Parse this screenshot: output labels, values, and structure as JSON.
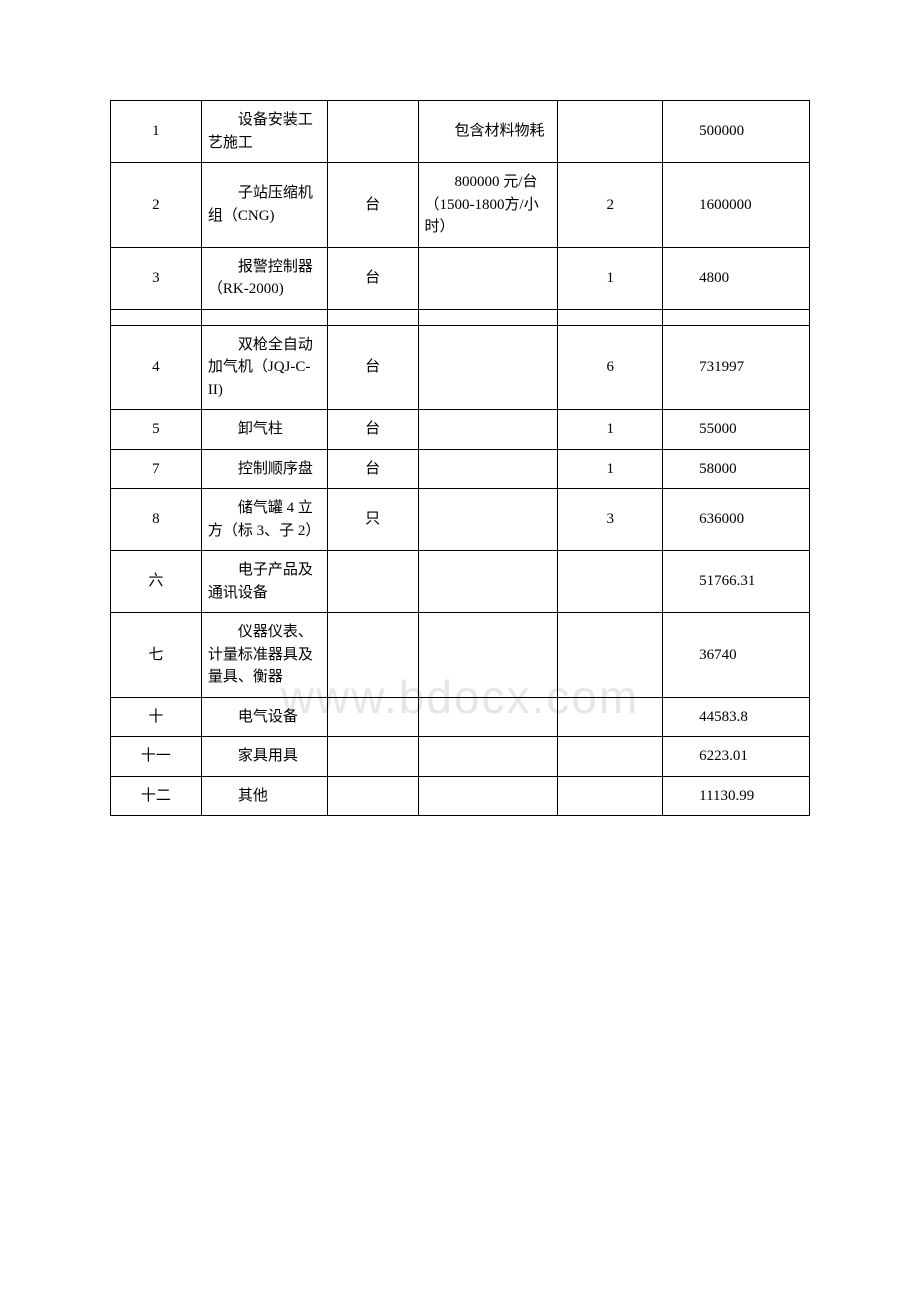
{
  "watermark": "www.bdocx.com",
  "table": {
    "columns_count": 6,
    "rows": [
      {
        "c0": "1",
        "c1": "设备安装工艺施工",
        "c2": "",
        "c3": "包含材料物耗",
        "c4": "",
        "c5": "500000"
      },
      {
        "c0": "2",
        "c1": "子站压缩机组（CNG)",
        "c2": "台",
        "c3": "800000 元/台（1500-1800方/小时）",
        "c4": "2",
        "c5": "1600000"
      },
      {
        "c0": "3",
        "c1": "报警控制器（RK-2000)",
        "c2": "台",
        "c3": "",
        "c4": "1",
        "c5": "4800"
      },
      {
        "separator": true
      },
      {
        "c0": "4",
        "c1": "双枪全自动加气机（JQJ-C-II)",
        "c2": "台",
        "c3": "",
        "c4": "6",
        "c5": "731997"
      },
      {
        "c0": "5",
        "c1": "卸气柱",
        "c2": "台",
        "c3": "",
        "c4": "1",
        "c5": "55000"
      },
      {
        "c0": "7",
        "c1": "控制顺序盘",
        "c2": "台",
        "c3": "",
        "c4": "1",
        "c5": "58000"
      },
      {
        "c0": "8",
        "c1": "储气罐 4 立方（标 3、子 2）",
        "c2": "只",
        "c3": "",
        "c4": "3",
        "c5": "636000"
      },
      {
        "c0": "六",
        "c1": "电子产品及通讯设备",
        "c2": "",
        "c3": "",
        "c4": "",
        "c5": "51766.31"
      },
      {
        "c0": "七",
        "c1": "仪器仪表、计量标准器具及量具、衡器",
        "c2": "",
        "c3": "",
        "c4": "",
        "c5": "36740"
      },
      {
        "c0": "十",
        "c1": "电气设备",
        "c2": "",
        "c3": "",
        "c4": "",
        "c5": "44583.8"
      },
      {
        "c0": "十一",
        "c1": "家具用具",
        "c2": "",
        "c3": "",
        "c4": "",
        "c5": "6223.01"
      },
      {
        "c0": "十二",
        "c1": "其他",
        "c2": "",
        "c3": "",
        "c4": "",
        "c5": "11130.99"
      }
    ]
  },
  "styles": {
    "body_bg": "#ffffff",
    "border_color": "#000000",
    "cell_font_size": 15,
    "font_family": "SimSun",
    "watermark_color": "rgba(200,200,200,0.45)",
    "watermark_font_size": 46
  }
}
